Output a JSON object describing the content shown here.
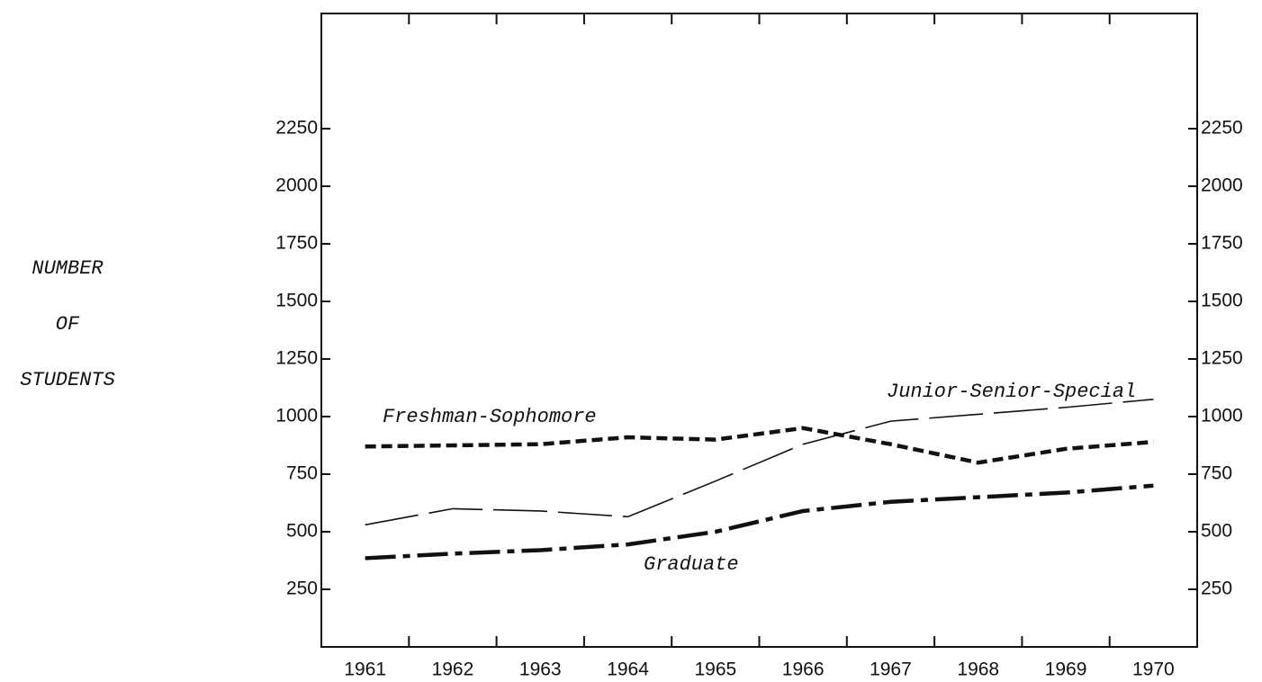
{
  "chart_data": {
    "type": "line",
    "ylabel": [
      "NUMBER",
      "OF",
      "STUDENTS"
    ],
    "categories": [
      "1961",
      "1962",
      "1963",
      "1964",
      "1965",
      "1966",
      "1967",
      "1968",
      "1969",
      "1970"
    ],
    "series": [
      {
        "name": "Freshman-Sophomore",
        "color": "#111111",
        "values": [
          870,
          875,
          880,
          910,
          900,
          950,
          880,
          800,
          860,
          890
        ]
      },
      {
        "name": "Junior-Senior-Special",
        "color": "#111111",
        "values": [
          530,
          600,
          590,
          565,
          720,
          880,
          980,
          1010,
          1040,
          1075
        ]
      },
      {
        "name": "Graduate",
        "color": "#111111",
        "values": [
          385,
          405,
          420,
          445,
          500,
          590,
          630,
          650,
          670,
          700
        ]
      }
    ],
    "ylim": [
      0,
      2750
    ],
    "yticks": [
      250,
      500,
      750,
      1000,
      1250,
      1500,
      1750,
      2000,
      2250
    ],
    "y2lim": [
      0,
      2750
    ],
    "y2ticks": [
      250,
      500,
      750,
      1000,
      1250,
      1500,
      1750,
      2000,
      2250
    ],
    "grid": false
  }
}
